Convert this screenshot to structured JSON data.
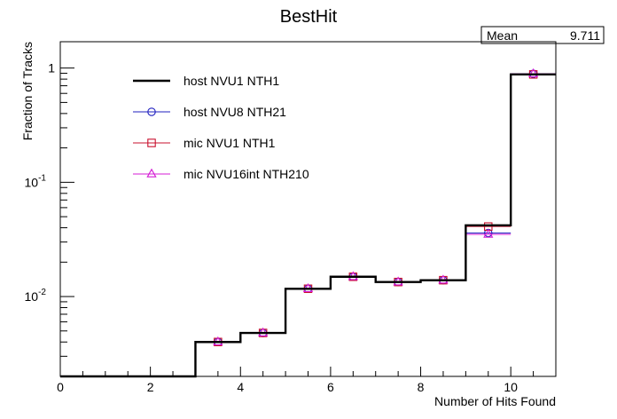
{
  "chart_data": {
    "type": "line",
    "title": "BestHit",
    "xlabel": "Number of Hits Found",
    "ylabel": "Fraction of Tracks",
    "xlim": [
      0,
      11
    ],
    "ylim": [
      0.002,
      1.7
    ],
    "yscale": "log",
    "grid": false,
    "legend_position": "top-left",
    "stats": {
      "label": "Mean",
      "value": "9.711"
    },
    "x_ticks": [
      {
        "value": 0,
        "label": "0"
      },
      {
        "value": 2,
        "label": "2"
      },
      {
        "value": 4,
        "label": "4"
      },
      {
        "value": 6,
        "label": "6"
      },
      {
        "value": 8,
        "label": "8"
      },
      {
        "value": 10,
        "label": "10"
      }
    ],
    "y_ticks": [
      {
        "value": 1,
        "base": "1",
        "exp": ""
      },
      {
        "value": 0.1,
        "base": "10",
        "exp": "-1"
      },
      {
        "value": 0.01,
        "base": "10",
        "exp": "-2"
      }
    ],
    "bin_edges": [
      0,
      1,
      2,
      3,
      4,
      5,
      6,
      7,
      8,
      9,
      10,
      11
    ],
    "series": [
      {
        "name": "host NVU1 NTH1",
        "color": "#000000",
        "marker": "none",
        "style": "histogram",
        "values": [
          0,
          0,
          0,
          0.004,
          0.0048,
          0.0117,
          0.0149,
          0.0134,
          0.0139,
          0.042,
          0.88
        ]
      },
      {
        "name": "host NVU8 NTH21",
        "color": "#1f1fbf",
        "marker": "circle",
        "style": "markers",
        "values": [
          0,
          0,
          0,
          0.004,
          0.0048,
          0.0117,
          0.0149,
          0.0134,
          0.0139,
          0.036,
          0.89
        ]
      },
      {
        "name": "mic NVU1 NTH1",
        "color": "#c8102e",
        "marker": "square",
        "style": "markers",
        "values": [
          0,
          0,
          0,
          0.004,
          0.0048,
          0.0117,
          0.0149,
          0.0134,
          0.0139,
          0.041,
          0.88
        ]
      },
      {
        "name": "mic NVU16int NTH210",
        "color": "#d41bd4",
        "marker": "triangle",
        "style": "markers",
        "values": [
          0,
          0,
          0,
          0.004,
          0.0048,
          0.0117,
          0.0149,
          0.0134,
          0.0139,
          0.035,
          0.89
        ]
      }
    ]
  }
}
